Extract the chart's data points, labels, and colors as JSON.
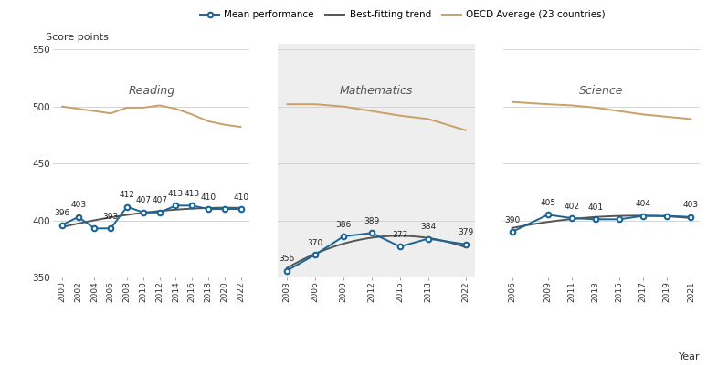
{
  "reading": {
    "years": [
      2000,
      2002,
      2004,
      2006,
      2008,
      2010,
      2012,
      2014,
      2016,
      2018,
      2020,
      2022
    ],
    "scores": [
      396,
      403,
      393,
      393,
      412,
      407,
      407,
      413,
      413,
      410,
      410,
      410
    ],
    "show_label": [
      true,
      true,
      false,
      true,
      true,
      true,
      true,
      true,
      true,
      true,
      false,
      true
    ],
    "oecd": [
      500,
      498,
      496,
      494,
      499,
      499,
      501,
      498,
      493,
      487,
      484,
      482
    ]
  },
  "mathematics": {
    "years": [
      2003,
      2006,
      2009,
      2012,
      2015,
      2018,
      2022
    ],
    "scores": [
      356,
      370,
      386,
      389,
      377,
      384,
      379
    ],
    "show_label": [
      true,
      true,
      true,
      true,
      true,
      true,
      true
    ],
    "oecd": [
      502,
      502,
      500,
      496,
      492,
      489,
      479
    ]
  },
  "science": {
    "years": [
      2006,
      2009,
      2011,
      2013,
      2015,
      2017,
      2019,
      2021
    ],
    "scores": [
      390,
      405,
      402,
      401,
      401,
      404,
      404,
      403
    ],
    "show_label": [
      true,
      true,
      true,
      true,
      false,
      true,
      false,
      true
    ],
    "oecd": [
      504,
      502,
      501,
      499,
      496,
      493,
      491,
      489
    ]
  },
  "mean_color": "#1a6496",
  "trend_color": "#555555",
  "oecd_color": "#C8A068",
  "bg_math_color": "#EEEEEE",
  "panel_titles": [
    "Reading",
    "Mathematics",
    "Science"
  ],
  "score_points_label": "Score points",
  "xlabel": "Year",
  "ylim": [
    350,
    555
  ],
  "yticks": [
    350,
    400,
    450,
    500,
    550
  ],
  "figsize": [
    7.74,
    4.0
  ],
  "dpi": 100
}
